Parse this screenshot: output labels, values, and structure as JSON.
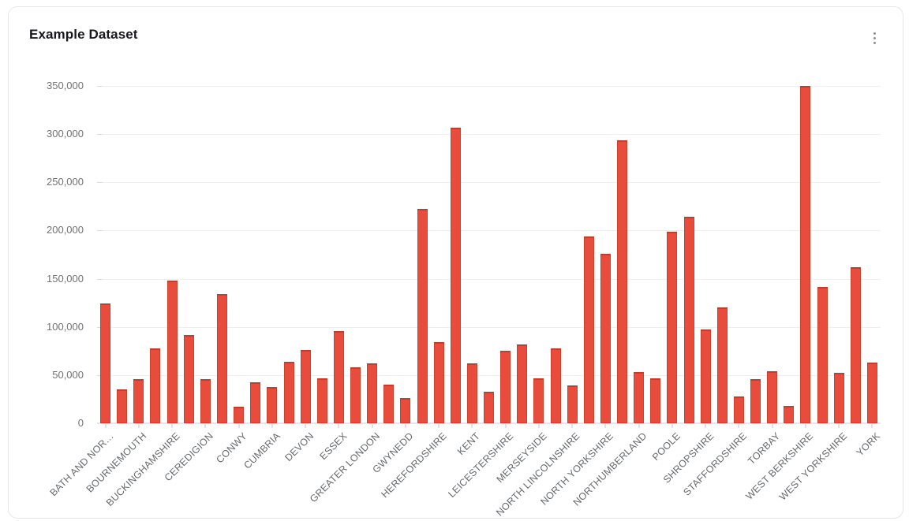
{
  "card": {
    "title": "Example Dataset",
    "menu_icon": "kebab-vertical"
  },
  "chart_data": {
    "type": "bar",
    "title": "Example Dataset",
    "xlabel": "",
    "ylabel": "",
    "ylim": [
      0,
      350000
    ],
    "y_tick_step": 50000,
    "y_tick_labels": [
      "0",
      "50,000",
      "100,000",
      "150,000",
      "200,000",
      "250,000",
      "300,000",
      "350,000"
    ],
    "grid": "horizontal",
    "legend": "none",
    "bar_color": "#e74c3c",
    "bar_border_color": "#cc3a26",
    "axis_color": "#e2e6f2",
    "label_note": "only every second bar carries an x-axis label; unlabeled bars shown as empty strings",
    "categories": [
      "BATH AND NOR…",
      "",
      "BOURNEMOUTH",
      "",
      "BUCKINGHAMSHIRE",
      "",
      "CEREDIGION",
      "",
      "CONWY",
      "",
      "CUMBRIA",
      "",
      "DEVON",
      "",
      "ESSEX",
      "",
      "GREATER LONDON",
      "",
      "GWYNEDD",
      "",
      "HEREFORDSHIRE",
      "",
      "KENT",
      "",
      "LEICESTERSHIRE",
      "",
      "MERSEYSIDE",
      "",
      "NORTH LINCOLNSHIRE",
      "",
      "NORTH YORKSHIRE",
      "",
      "NORTHUMBERLAND",
      "",
      "POOLE",
      "",
      "SHROPSHIRE",
      "",
      "STAFFORDSHIRE",
      "",
      "TORBAY",
      "",
      "WEST BERKSHIRE",
      "",
      "WEST YORKSHIRE",
      "",
      "YORK"
    ],
    "values": [
      124500,
      35500,
      45500,
      78000,
      148000,
      91500,
      45500,
      134500,
      17500,
      42500,
      37500,
      63500,
      76500,
      46500,
      96000,
      58000,
      62500,
      40500,
      26500,
      222500,
      84000,
      306500,
      62500,
      33000,
      75500,
      81500,
      47000,
      77500,
      39500,
      194000,
      176000,
      293500,
      53500,
      46500,
      199000,
      214500,
      97500,
      120000,
      28000,
      46000,
      54000,
      18000,
      350000,
      141500,
      52500,
      162000,
      63000
    ]
  }
}
